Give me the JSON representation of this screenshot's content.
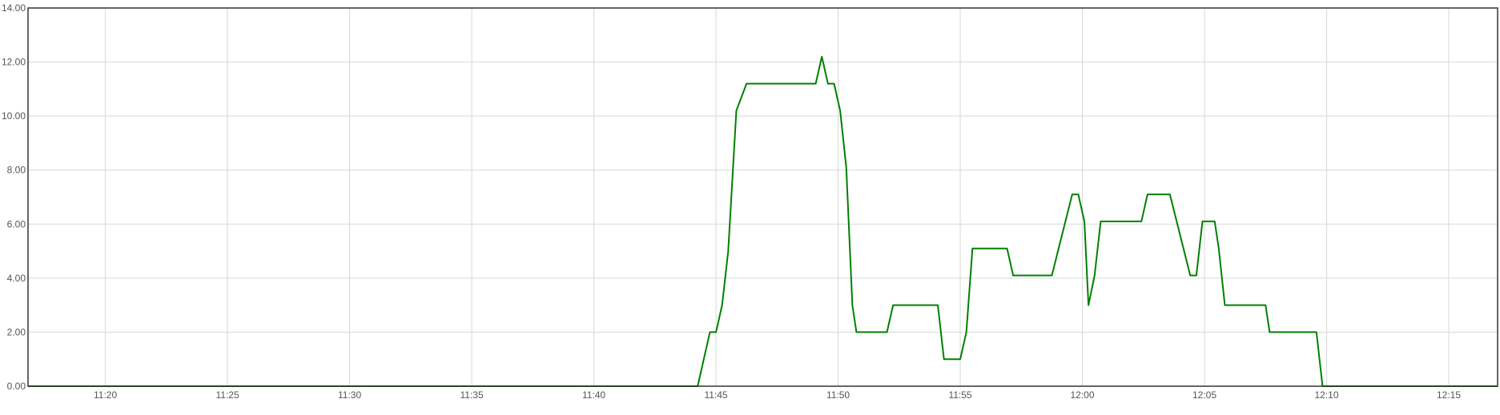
{
  "chart_data": {
    "type": "line",
    "title": "",
    "xlabel": "",
    "ylabel": "",
    "ylim": [
      0,
      14
    ],
    "xlim": [
      "11:16:50",
      "12:17:00"
    ],
    "y_ticks": [
      "0.00",
      "2.00",
      "4.00",
      "6.00",
      "8.00",
      "10.00",
      "12.00",
      "14.00"
    ],
    "x_ticks": [
      "11:20",
      "11:25",
      "11:30",
      "11:35",
      "11:40",
      "11:45",
      "11:50",
      "11:55",
      "12:00",
      "12:05",
      "12:10",
      "12:15"
    ],
    "grid": true,
    "legend": "none",
    "line_color": "#008000",
    "series": [
      {
        "x": [
          "11:16:50",
          "11:44:15",
          "11:44:45",
          "11:45:00",
          "11:45:15",
          "11:45:30",
          "11:45:50",
          "11:46:15",
          "11:49:05",
          "11:49:20",
          "11:49:35",
          "11:49:50",
          "11:50:05",
          "11:50:20",
          "11:50:35",
          "11:50:45",
          "11:52:00",
          "11:52:15",
          "11:54:05",
          "11:54:20",
          "11:55:00",
          "11:55:15",
          "11:55:30",
          "11:56:55",
          "11:57:10",
          "11:58:45",
          "11:59:35",
          "11:59:50",
          "12:00:05",
          "12:00:15",
          "12:00:30",
          "12:00:45",
          "12:02:25",
          "12:02:40",
          "12:03:35",
          "12:04:25",
          "12:04:40",
          "12:04:55",
          "12:05:25",
          "12:05:35",
          "12:05:50",
          "12:07:30",
          "12:07:40",
          "12:09:35",
          "12:09:50",
          "12:17:00"
        ],
        "y": [
          0,
          0,
          2,
          2,
          3,
          5,
          10.2,
          11.2,
          11.2,
          12.2,
          11.2,
          11.2,
          10.2,
          8.1,
          3,
          2,
          2,
          3,
          3,
          1,
          1,
          2,
          5.1,
          5.1,
          4.1,
          4.1,
          7.1,
          7.1,
          6.1,
          3,
          4.1,
          6.1,
          6.1,
          7.1,
          7.1,
          4.1,
          4.1,
          6.1,
          6.1,
          5.1,
          3,
          3,
          2,
          2,
          0,
          0
        ]
      }
    ]
  }
}
